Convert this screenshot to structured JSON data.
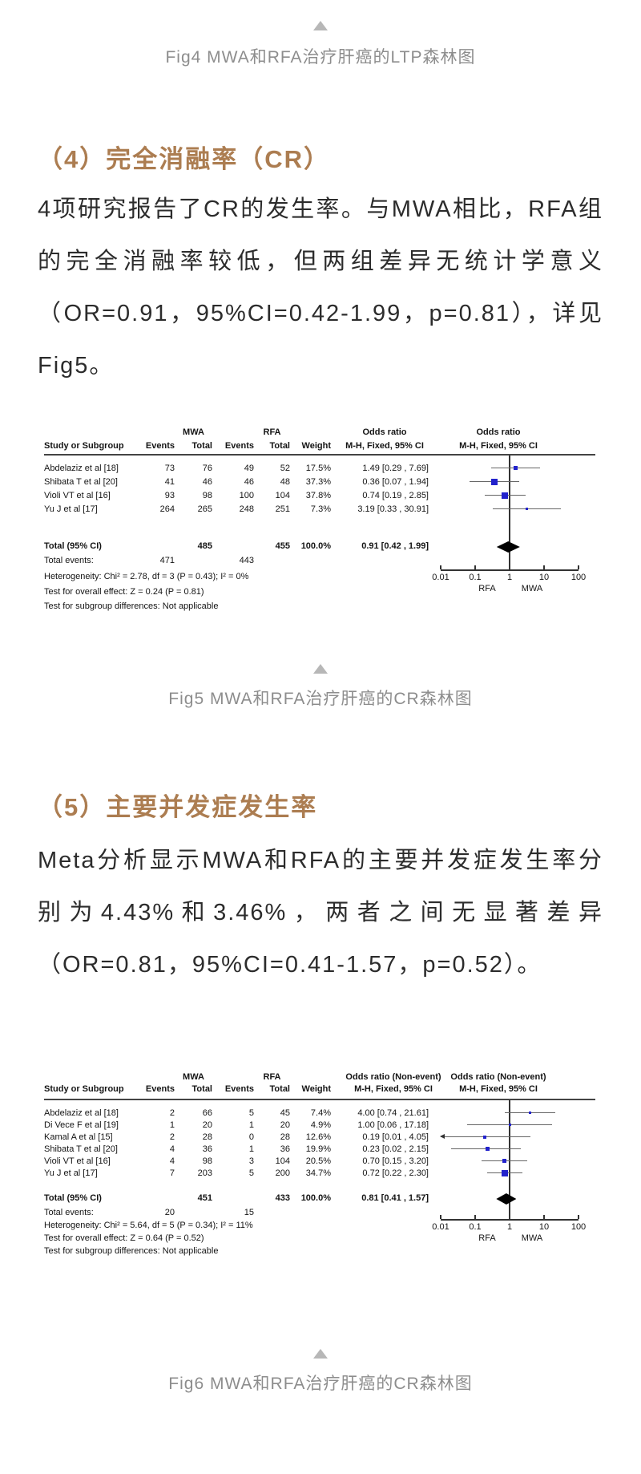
{
  "captions": {
    "fig4": "Fig4 MWA和RFA治疗肝癌的LTP森林图",
    "fig5": "Fig5 MWA和RFA治疗肝癌的CR森林图",
    "fig6": "Fig6 MWA和RFA治疗肝癌的CR森林图"
  },
  "sections": {
    "s4": {
      "heading": "（4）完全消融率（CR）",
      "paragraph": "4项研究报告了CR的发生率。与MWA相比，RFA组的完全消融率较低，但两组差异无统计学意义（OR=0.91，95%CI=0.42-1.99，p=0.81），详见Fig5。"
    },
    "s5": {
      "heading": "（5）主要并发症发生率",
      "paragraph": "Meta分析显示MWA和RFA的主要并发症发生率分别为4.43%和3.46%，两者之间无显著差异（OR=0.81，95%CI=0.41-1.57，p=0.52）。"
    }
  },
  "colors": {
    "heading": "#ac7d51",
    "caption_gray": "#8d8d8d",
    "triangle_gray": "#b7b7b7",
    "marker_blue": "#2222cc",
    "diamond_black": "#000000"
  },
  "chart_data": [
    {
      "type": "forest",
      "figure": "Fig5",
      "group1": "MWA",
      "group2": "RFA",
      "study_header": "Study or Subgroup",
      "col_headers": [
        "Events",
        "Total",
        "Events",
        "Total",
        "Weight"
      ],
      "effect_header": "Odds ratio",
      "effect_subheader": "M-H, Fixed, 95% CI",
      "rows": [
        {
          "study": "Abdelaziz et al [18]",
          "events1": 73,
          "total1": 76,
          "events2": 49,
          "total2": 52,
          "weight": "17.5%",
          "or": 1.49,
          "ci_low": 0.29,
          "ci_high": 7.69,
          "label": "1.49 [0.29 , 7.69]"
        },
        {
          "study": "Shibata T et al [20]",
          "events1": 41,
          "total1": 46,
          "events2": 46,
          "total2": 48,
          "weight": "37.3%",
          "or": 0.36,
          "ci_low": 0.07,
          "ci_high": 1.94,
          "label": "0.36 [0.07 , 1.94]"
        },
        {
          "study": "Violi VT et al [16]",
          "events1": 93,
          "total1": 98,
          "events2": 100,
          "total2": 104,
          "weight": "37.8%",
          "or": 0.74,
          "ci_low": 0.19,
          "ci_high": 2.85,
          "label": "0.74 [0.19 , 2.85]"
        },
        {
          "study": "Yu J et al [17]",
          "events1": 264,
          "total1": 265,
          "events2": 248,
          "total2": 251,
          "weight": "7.3%",
          "or": 3.19,
          "ci_low": 0.33,
          "ci_high": 30.91,
          "label": "3.19 [0.33 , 30.91]"
        }
      ],
      "total": {
        "study": "Total (95% CI)",
        "total1": 485,
        "total2": 455,
        "weight": "100.0%",
        "or": 0.91,
        "ci_low": 0.42,
        "ci_high": 1.99,
        "label": "0.91 [0.42 , 1.99]"
      },
      "total_events": {
        "study": "Total events:",
        "events1": 471,
        "events2": 443
      },
      "heterogeneity": "Heterogeneity: Chi² = 2.78, df = 3 (P = 0.43); I² = 0%",
      "overall_effect": "Test for overall effect: Z = 0.24 (P = 0.81)",
      "subgroup_diff": "Test for subgroup differences: Not applicable",
      "axis_ticks": [
        "0.01",
        "0.1",
        "1",
        "10",
        "100"
      ],
      "axis_left_label": "RFA",
      "axis_right_label": "MWA",
      "xscale": "log",
      "xlim": [
        0.01,
        100
      ]
    },
    {
      "type": "forest",
      "figure": "Fig6",
      "group1": "MWA",
      "group2": "RFA",
      "study_header": "Study or Subgroup",
      "col_headers": [
        "Events",
        "Total",
        "Events",
        "Total",
        "Weight"
      ],
      "effect_header": "Odds ratio (Non-event)",
      "effect_subheader": "M-H, Fixed, 95% CI",
      "rows": [
        {
          "study": "Abdelaziz et al [18]",
          "events1": 2,
          "total1": 66,
          "events2": 5,
          "total2": 45,
          "weight": "7.4%",
          "or": 4.0,
          "ci_low": 0.74,
          "ci_high": 21.61,
          "label": "4.00 [0.74 , 21.61]"
        },
        {
          "study": "Di Vece F et al [19]",
          "events1": 1,
          "total1": 20,
          "events2": 1,
          "total2": 20,
          "weight": "4.9%",
          "or": 1.0,
          "ci_low": 0.06,
          "ci_high": 17.18,
          "label": "1.00 [0.06 , 17.18]"
        },
        {
          "study": "Kamal A et al [15]",
          "events1": 2,
          "total1": 28,
          "events2": 0,
          "total2": 28,
          "weight": "12.6%",
          "or": 0.19,
          "ci_low": 0.01,
          "ci_high": 4.05,
          "label": "0.19 [0.01 , 4.05]"
        },
        {
          "study": "Shibata T et al [20]",
          "events1": 4,
          "total1": 36,
          "events2": 1,
          "total2": 36,
          "weight": "19.9%",
          "or": 0.23,
          "ci_low": 0.02,
          "ci_high": 2.15,
          "label": "0.23 [0.02 , 2.15]"
        },
        {
          "study": "Violi VT et al [16]",
          "events1": 4,
          "total1": 98,
          "events2": 3,
          "total2": 104,
          "weight": "20.5%",
          "or": 0.7,
          "ci_low": 0.15,
          "ci_high": 3.2,
          "label": "0.70 [0.15 , 3.20]"
        },
        {
          "study": "Yu J et al [17]",
          "events1": 7,
          "total1": 203,
          "events2": 5,
          "total2": 200,
          "weight": "34.7%",
          "or": 0.72,
          "ci_low": 0.22,
          "ci_high": 2.3,
          "label": "0.72 [0.22 , 2.30]"
        }
      ],
      "total": {
        "study": "Total (95% CI)",
        "total1": 451,
        "total2": 433,
        "weight": "100.0%",
        "or": 0.81,
        "ci_low": 0.41,
        "ci_high": 1.57,
        "label": "0.81 [0.41 , 1.57]"
      },
      "total_events": {
        "study": "Total events:",
        "events1": 20,
        "events2": 15
      },
      "heterogeneity": "Heterogeneity: Chi² = 5.64, df = 5 (P = 0.34); I² = 11%",
      "overall_effect": "Test for overall effect: Z = 0.64 (P = 0.52)",
      "subgroup_diff": "Test for subgroup differences: Not applicable",
      "axis_ticks": [
        "0.01",
        "0.1",
        "1",
        "10",
        "100"
      ],
      "axis_left_label": "RFA",
      "axis_right_label": "MWA",
      "xscale": "log",
      "xlim": [
        0.01,
        100
      ]
    }
  ]
}
